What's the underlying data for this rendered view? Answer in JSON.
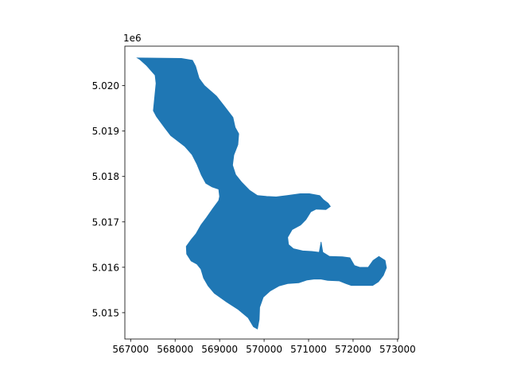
{
  "chart_data": {
    "type": "map",
    "title": "",
    "xlabel": "",
    "ylabel": "",
    "fill_color": "#1f77b4",
    "grid": false,
    "legend": "none",
    "xlim": [
      566870,
      573020
    ],
    "ylim": [
      5014420,
      5020870
    ],
    "xticks": [
      567000,
      568000,
      569000,
      570000,
      571000,
      572000,
      573000
    ],
    "xtick_labels": [
      "567000",
      "568000",
      "569000",
      "570000",
      "571000",
      "572000",
      "573000"
    ],
    "yticks": [
      5015000,
      5016000,
      5017000,
      5018000,
      5019000,
      5020000
    ],
    "ytick_labels": [
      "5.015",
      "5.016",
      "5.017",
      "5.018",
      "5.019",
      "5.020"
    ],
    "y_offset_label": "1e6",
    "polygon": [
      [
        567150,
        5020610
      ],
      [
        568140,
        5020600
      ],
      [
        568390,
        5020560
      ],
      [
        568460,
        5020430
      ],
      [
        568540,
        5020160
      ],
      [
        568660,
        5020000
      ],
      [
        568930,
        5019770
      ],
      [
        569120,
        5019530
      ],
      [
        569300,
        5019300
      ],
      [
        569350,
        5019080
      ],
      [
        569430,
        5018940
      ],
      [
        569410,
        5018700
      ],
      [
        569320,
        5018470
      ],
      [
        569290,
        5018250
      ],
      [
        569360,
        5018040
      ],
      [
        569500,
        5017870
      ],
      [
        569670,
        5017700
      ],
      [
        569850,
        5017580
      ],
      [
        570060,
        5017560
      ],
      [
        570270,
        5017550
      ],
      [
        570520,
        5017580
      ],
      [
        570810,
        5017620
      ],
      [
        571020,
        5017620
      ],
      [
        571250,
        5017580
      ],
      [
        571330,
        5017490
      ],
      [
        571440,
        5017410
      ],
      [
        571490,
        5017340
      ],
      [
        571390,
        5017270
      ],
      [
        571170,
        5017280
      ],
      [
        571050,
        5017220
      ],
      [
        570940,
        5017050
      ],
      [
        570820,
        5016930
      ],
      [
        570630,
        5016830
      ],
      [
        570530,
        5016660
      ],
      [
        570550,
        5016500
      ],
      [
        570660,
        5016410
      ],
      [
        570870,
        5016360
      ],
      [
        571070,
        5016350
      ],
      [
        571240,
        5016330
      ],
      [
        571280,
        5016560
      ],
      [
        571320,
        5016330
      ],
      [
        571470,
        5016240
      ],
      [
        571760,
        5016230
      ],
      [
        571930,
        5016210
      ],
      [
        572030,
        5016040
      ],
      [
        572150,
        5016000
      ],
      [
        572340,
        5016000
      ],
      [
        572450,
        5016150
      ],
      [
        572580,
        5016240
      ],
      [
        572720,
        5016150
      ],
      [
        572750,
        5015990
      ],
      [
        572680,
        5015820
      ],
      [
        572570,
        5015680
      ],
      [
        572440,
        5015600
      ],
      [
        572190,
        5015600
      ],
      [
        571960,
        5015600
      ],
      [
        571840,
        5015640
      ],
      [
        571690,
        5015700
      ],
      [
        571430,
        5015710
      ],
      [
        571280,
        5015740
      ],
      [
        571120,
        5015740
      ],
      [
        570970,
        5015720
      ],
      [
        570780,
        5015660
      ],
      [
        570530,
        5015640
      ],
      [
        570340,
        5015590
      ],
      [
        570140,
        5015480
      ],
      [
        569980,
        5015340
      ],
      [
        569900,
        5015120
      ],
      [
        569890,
        5014850
      ],
      [
        569850,
        5014640
      ],
      [
        569760,
        5014690
      ],
      [
        569640,
        5014890
      ],
      [
        569420,
        5015070
      ],
      [
        569150,
        5015240
      ],
      [
        568880,
        5015430
      ],
      [
        568740,
        5015590
      ],
      [
        568640,
        5015760
      ],
      [
        568580,
        5015960
      ],
      [
        568490,
        5016070
      ],
      [
        568360,
        5016140
      ],
      [
        568260,
        5016290
      ],
      [
        568250,
        5016460
      ],
      [
        568360,
        5016610
      ],
      [
        568470,
        5016740
      ],
      [
        568580,
        5016930
      ],
      [
        568700,
        5017090
      ],
      [
        568850,
        5017300
      ],
      [
        568980,
        5017470
      ],
      [
        569000,
        5017560
      ],
      [
        568980,
        5017720
      ],
      [
        568830,
        5017770
      ],
      [
        568690,
        5017850
      ],
      [
        568590,
        5018030
      ],
      [
        568490,
        5018270
      ],
      [
        568380,
        5018480
      ],
      [
        568220,
        5018660
      ],
      [
        568010,
        5018820
      ],
      [
        567900,
        5018900
      ],
      [
        567760,
        5019080
      ],
      [
        567580,
        5019320
      ],
      [
        567510,
        5019450
      ],
      [
        567540,
        5019750
      ],
      [
        567570,
        5020050
      ],
      [
        567550,
        5020230
      ],
      [
        567360,
        5020440
      ],
      [
        567200,
        5020580
      ]
    ]
  }
}
